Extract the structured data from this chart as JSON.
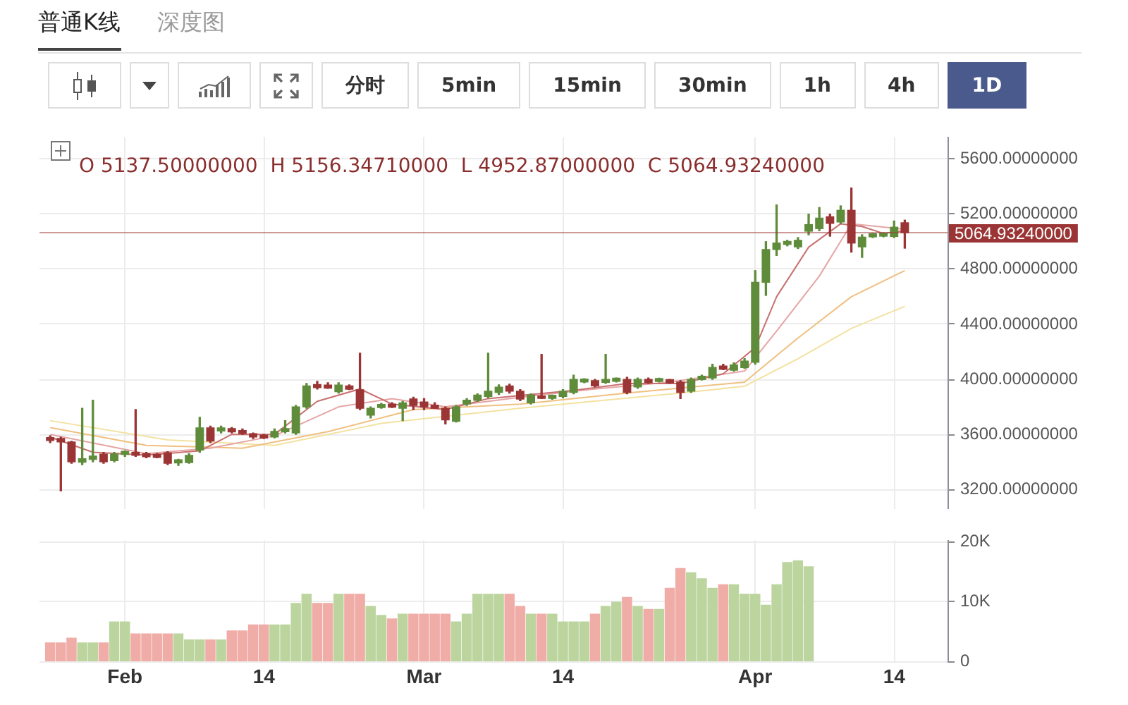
{
  "chart_data": [
    {
      "type": "candlestick",
      "annotations": [
        "O 5137.50000000  H 5156.34710000  L 4952.87000000  C 5064.93240000",
        "普通K线",
        "深度图",
        "分时",
        "5min",
        "15min",
        "30min",
        "1h",
        "4h",
        "1D"
      ],
      "x": [
        "--01-25",
        "--01-26",
        "--01-27",
        "--01-28",
        "--01-29",
        "--01-30",
        "--01-31",
        "--02-01",
        "--02-02",
        "--02-03",
        "--02-04",
        "--02-05",
        "--02-06",
        "--02-07",
        "--02-08",
        "--02-09",
        "--02-10",
        "--02-11",
        "--02-12",
        "--02-13",
        "--02-14",
        "--02-15",
        "--02-16",
        "--02-17",
        "--02-18",
        "--02-19",
        "--02-20",
        "--02-21",
        "--02-22",
        "--02-23",
        "--02-24",
        "--02-25",
        "--02-26",
        "--02-27",
        "--02-28",
        "--03-01",
        "--03-02",
        "--03-03",
        "--03-04",
        "--03-05",
        "--03-06",
        "--03-07",
        "--03-08",
        "--03-09",
        "--03-10",
        "--03-11",
        "--03-12",
        "--03-13",
        "--03-14",
        "--03-15",
        "--03-16",
        "--03-17",
        "--03-18",
        "--03-19",
        "--03-20",
        "--03-21",
        "--03-22",
        "--03-23",
        "--03-24",
        "--03-25",
        "--03-26",
        "--03-27",
        "--03-28",
        "--03-29",
        "--03-30",
        "--03-31",
        "--04-01",
        "--04-02",
        "--04-03",
        "--04-04",
        "--04-05",
        "--04-06",
        "--04-07",
        "--04-08",
        "--04-09",
        "--04-10",
        "--04-11",
        "--04-12",
        "--04-13",
        "--04-14",
        "--04-15"
      ],
      "ohlc": [
        [
          3577,
          3590,
          3540,
          3555
        ],
        [
          3570,
          3580,
          3190,
          3545
        ],
        [
          3545,
          3550,
          3390,
          3400
        ],
        [
          3398,
          3790,
          3380,
          3423
        ],
        [
          3418,
          3848,
          3400,
          3443
        ],
        [
          3457,
          3470,
          3390,
          3400
        ],
        [
          3410,
          3470,
          3400,
          3457
        ],
        [
          3455,
          3480,
          3440,
          3477
        ],
        [
          3470,
          3781,
          3440,
          3448
        ],
        [
          3460,
          3470,
          3430,
          3438
        ],
        [
          3455,
          3460,
          3430,
          3433
        ],
        [
          3467,
          3475,
          3380,
          3390
        ],
        [
          3393,
          3420,
          3375,
          3415
        ],
        [
          3395,
          3460,
          3390,
          3448
        ],
        [
          3486,
          3724,
          3470,
          3648
        ],
        [
          3648,
          3660,
          3540,
          3552
        ],
        [
          3625,
          3660,
          3610,
          3647
        ],
        [
          3642,
          3650,
          3610,
          3618
        ],
        [
          3628,
          3640,
          3600,
          3606
        ],
        [
          3605,
          3610,
          3570,
          3581
        ],
        [
          3595,
          3600,
          3570,
          3573
        ],
        [
          3581,
          3640,
          3575,
          3622
        ],
        [
          3620,
          3700,
          3610,
          3642
        ],
        [
          3610,
          3810,
          3600,
          3800
        ],
        [
          3800,
          3970,
          3790,
          3952
        ],
        [
          3962,
          3985,
          3930,
          3940
        ],
        [
          3958,
          3975,
          3935,
          3936
        ],
        [
          3910,
          3975,
          3900,
          3958
        ],
        [
          3952,
          3960,
          3925,
          3928
        ],
        [
          3924,
          4190,
          3780,
          3790
        ],
        [
          3740,
          3800,
          3720,
          3790
        ],
        [
          3795,
          3825,
          3790,
          3818
        ],
        [
          3820,
          3830,
          3795,
          3797
        ],
        [
          3790,
          3840,
          3700,
          3829
        ],
        [
          3857,
          3870,
          3780,
          3810
        ],
        [
          3835,
          3860,
          3780,
          3800
        ],
        [
          3812,
          3830,
          3790,
          3790
        ],
        [
          3790,
          3800,
          3676,
          3705
        ],
        [
          3695,
          3810,
          3690,
          3800
        ],
        [
          3820,
          3860,
          3810,
          3848
        ],
        [
          3848,
          3895,
          3840,
          3886
        ],
        [
          3876,
          4190,
          3865,
          3914
        ],
        [
          3905,
          3960,
          3890,
          3943
        ],
        [
          3952,
          3965,
          3900,
          3914
        ],
        [
          3914,
          3925,
          3845,
          3857
        ],
        [
          3829,
          3895,
          3820,
          3886
        ],
        [
          3879,
          4181,
          3860,
          3862
        ],
        [
          3862,
          3885,
          3855,
          3884
        ],
        [
          3876,
          3925,
          3865,
          3914
        ],
        [
          3905,
          4030,
          3895,
          4000
        ],
        [
          3980,
          4005,
          3975,
          4002
        ],
        [
          3990,
          4000,
          3945,
          3952
        ],
        [
          3978,
          4181,
          3970,
          4000
        ],
        [
          3986,
          4010,
          3980,
          4008
        ],
        [
          4000,
          4015,
          3895,
          3905
        ],
        [
          3945,
          4010,
          3935,
          4000
        ],
        [
          4000,
          4010,
          3970,
          3977
        ],
        [
          3984,
          4008,
          3980,
          4006
        ],
        [
          3998,
          4000,
          3970,
          3974
        ],
        [
          3980,
          3990,
          3860,
          3905
        ],
        [
          3914,
          4010,
          3905,
          4000
        ],
        [
          3998,
          4030,
          3995,
          4022
        ],
        [
          4010,
          4110,
          4000,
          4086
        ],
        [
          4097,
          4110,
          4070,
          4073
        ],
        [
          4067,
          4120,
          4060,
          4105
        ],
        [
          4086,
          4150,
          4080,
          4133
        ],
        [
          4124,
          4790,
          4110,
          4705
        ],
        [
          4705,
          5000,
          4610,
          4943
        ],
        [
          4943,
          5267,
          4900,
          4990
        ],
        [
          4980,
          5010,
          4970,
          5002
        ],
        [
          4962,
          5030,
          4950,
          5010
        ],
        [
          5076,
          5200,
          5050,
          5124
        ],
        [
          5095,
          5248,
          5080,
          5171
        ],
        [
          5181,
          5200,
          5040,
          5133
        ],
        [
          5143,
          5260,
          5130,
          5228
        ],
        [
          5228,
          5390,
          4924,
          4990
        ],
        [
          4962,
          5050,
          4886,
          5033
        ],
        [
          5035,
          5060,
          5030,
          5057
        ],
        [
          5040,
          5065,
          5035,
          5062
        ],
        [
          5038,
          5150,
          5030,
          5105
        ],
        [
          5137.5,
          5156.3471,
          4952.87,
          5064.9324
        ]
      ],
      "colors": [
        "#9b3535",
        "#9b3535",
        "#9b3535",
        "#5e8c3a",
        "#5e8c3a",
        "#9b3535",
        "#5e8c3a",
        "#5e8c3a",
        "#9b3535",
        "#9b3535",
        "#9b3535",
        "#9b3535",
        "#5e8c3a",
        "#5e8c3a",
        "#5e8c3a",
        "#9b3535",
        "#5e8c3a",
        "#9b3535",
        "#9b3535",
        "#9b3535",
        "#9b3535",
        "#5e8c3a",
        "#5e8c3a",
        "#5e8c3a",
        "#5e8c3a",
        "#9b3535",
        "#9b3535",
        "#5e8c3a",
        "#9b3535",
        "#9b3535",
        "#5e8c3a",
        "#5e8c3a",
        "#9b3535",
        "#5e8c3a",
        "#9b3535",
        "#9b3535",
        "#9b3535",
        "#9b3535",
        "#5e8c3a",
        "#5e8c3a",
        "#5e8c3a",
        "#5e8c3a",
        "#5e8c3a",
        "#9b3535",
        "#9b3535",
        "#5e8c3a",
        "#9b3535",
        "#5e8c3a",
        "#5e8c3a",
        "#5e8c3a",
        "#5e8c3a",
        "#9b3535",
        "#5e8c3a",
        "#5e8c3a",
        "#9b3535",
        "#5e8c3a",
        "#9b3535",
        "#5e8c3a",
        "#9b3535",
        "#9b3535",
        "#5e8c3a",
        "#5e8c3a",
        "#5e8c3a",
        "#9b3535",
        "#5e8c3a",
        "#5e8c3a",
        "#5e8c3a",
        "#5e8c3a",
        "#5e8c3a",
        "#5e8c3a",
        "#5e8c3a",
        "#5e8c3a",
        "#5e8c3a",
        "#9b3535",
        "#5e8c3a",
        "#9b3535",
        "#5e8c3a",
        "#5e8c3a",
        "#5e8c3a",
        "#5e8c3a",
        "#9b3535"
      ],
      "series": [
        {
          "type": "line",
          "color": "#c97070",
          "x": [
            "--01-25",
            "--01-29",
            "--02-03",
            "--02-08",
            "--02-11",
            "--02-15",
            "--02-19",
            "--02-23",
            "--02-26",
            "--03-03",
            "--03-07",
            "--03-11",
            "--03-15",
            "--03-20",
            "--03-25",
            "--03-29",
            "--04-01",
            "--04-03",
            "--04-06",
            "--04-09",
            "--04-11",
            "--04-13",
            "--04-15"
          ],
          "values": [
            3580,
            3470,
            3450,
            3480,
            3600,
            3600,
            3840,
            3930,
            3820,
            3780,
            3860,
            3890,
            3920,
            3970,
            3970,
            4040,
            4230,
            4600,
            4960,
            5130,
            5110,
            5060,
            5080
          ]
        },
        {
          "type": "line",
          "color": "#e6a5a5",
          "x": [
            "--01-25",
            "--02-03",
            "--02-09",
            "--02-15",
            "--02-21",
            "--02-26",
            "--03-03",
            "--03-10",
            "--03-17",
            "--03-24",
            "--03-31",
            "--04-03",
            "--04-07",
            "--04-10",
            "--04-15"
          ],
          "values": [
            3600,
            3460,
            3500,
            3590,
            3800,
            3860,
            3800,
            3870,
            3930,
            3980,
            4060,
            4350,
            4750,
            5130,
            5090
          ]
        },
        {
          "type": "line",
          "color": "#f0c080",
          "x": [
            "--01-25",
            "--02-03",
            "--02-12",
            "--02-20",
            "--02-28",
            "--03-10",
            "--03-20",
            "--03-31",
            "--04-05",
            "--04-10",
            "--04-15"
          ],
          "values": [
            3650,
            3520,
            3500,
            3620,
            3780,
            3820,
            3900,
            3980,
            4300,
            4600,
            4790
          ]
        },
        {
          "type": "line",
          "color": "#f3e2a0",
          "x": [
            "--01-25",
            "--02-05",
            "--02-15",
            "--02-25",
            "--03-10",
            "--03-25",
            "--03-31",
            "--04-05",
            "--04-10",
            "--04-15"
          ],
          "values": [
            3700,
            3560,
            3520,
            3680,
            3790,
            3900,
            3950,
            4150,
            4370,
            4530
          ]
        }
      ],
      "xlim": [
        "--01-24",
        "--04-19"
      ],
      "ylim": [
        3060,
        5760
      ],
      "yticks": [
        {
          "value": 3200,
          "label": "3200.00000000"
        },
        {
          "value": 3600,
          "label": "3600.00000000"
        },
        {
          "value": 4000,
          "label": "4000.00000000"
        },
        {
          "value": 4400,
          "label": "4400.00000000"
        },
        {
          "value": 4800,
          "label": "4800.00000000"
        },
        {
          "value": 5200,
          "label": "5200.00000000"
        },
        {
          "value": 5600,
          "label": "5600.00000000"
        }
      ],
      "xticks": [
        {
          "value": "--02-01",
          "label": null
        },
        {
          "value": "--02-14",
          "label": null
        },
        {
          "value": "--03-01",
          "label": null
        },
        {
          "value": "--03-14",
          "label": null
        },
        {
          "value": "--04-01",
          "label": null
        },
        {
          "value": "--04-14",
          "label": null
        }
      ],
      "ref_lines": [
        {
          "axis": "y",
          "value": 5064.9324,
          "label": "5064.93240000",
          "color": "#9b3535"
        }
      ],
      "tick_labels": "y",
      "grid": true,
      "legend": false,
      "marker": "none"
    },
    {
      "type": "bar",
      "x": [
        "--01-25",
        "--01-26",
        "--01-27",
        "--01-28",
        "--01-29",
        "--01-30",
        "--01-31",
        "--02-01",
        "--02-02",
        "--02-03",
        "--02-04",
        "--02-05",
        "--02-06",
        "--02-07",
        "--02-08",
        "--02-09",
        "--02-10",
        "--02-11",
        "--02-12",
        "--02-13",
        "--02-14",
        "--02-15",
        "--02-16",
        "--02-17",
        "--02-18",
        "--02-19",
        "--02-20",
        "--02-21",
        "--02-22",
        "--02-23",
        "--02-24",
        "--02-25",
        "--02-26",
        "--02-27",
        "--02-28",
        "--03-01",
        "--03-02",
        "--03-03",
        "--03-04",
        "--03-05",
        "--03-06",
        "--03-07",
        "--03-08",
        "--03-09",
        "--03-10",
        "--03-11",
        "--03-12",
        "--03-13",
        "--03-14",
        "--03-15",
        "--03-16",
        "--03-17",
        "--03-18",
        "--03-19",
        "--03-20",
        "--03-21",
        "--03-22",
        "--03-23",
        "--03-24",
        "--03-25",
        "--03-26",
        "--03-27",
        "--03-28",
        "--03-29",
        "--03-30",
        "--03-31",
        "--04-01",
        "--04-02",
        "--04-03",
        "--04-04",
        "--04-05",
        "--04-06"
      ],
      "values": [
        3100,
        3100,
        3900,
        3100,
        3100,
        3100,
        6600,
        6600,
        4600,
        4600,
        4600,
        4600,
        4600,
        3600,
        3600,
        3600,
        3600,
        5100,
        5100,
        6100,
        6100,
        6100,
        6100,
        9700,
        11200,
        9700,
        9700,
        11200,
        11200,
        11200,
        9200,
        7700,
        7100,
        7900,
        7900,
        7900,
        7900,
        7900,
        6600,
        7900,
        11200,
        11200,
        11200,
        11200,
        9200,
        7900,
        7900,
        7900,
        6600,
        6600,
        6600,
        7900,
        9200,
        9900,
        10700,
        9200,
        8700,
        8700,
        12200,
        15500,
        14800,
        13800,
        12200,
        12800,
        12800,
        11200,
        11200,
        9400,
        12800,
        16500,
        16800,
        15800
      ],
      "colors": [
        "#f0aca6",
        "#f0aca6",
        "#f0aca6",
        "#bcd59f",
        "#bcd59f",
        "#f0aca6",
        "#bcd59f",
        "#bcd59f",
        "#f0aca6",
        "#f0aca6",
        "#f0aca6",
        "#f0aca6",
        "#bcd59f",
        "#bcd59f",
        "#bcd59f",
        "#f0aca6",
        "#bcd59f",
        "#f0aca6",
        "#f0aca6",
        "#f0aca6",
        "#f0aca6",
        "#bcd59f",
        "#bcd59f",
        "#bcd59f",
        "#bcd59f",
        "#f0aca6",
        "#f0aca6",
        "#bcd59f",
        "#f0aca6",
        "#f0aca6",
        "#bcd59f",
        "#bcd59f",
        "#f0aca6",
        "#bcd59f",
        "#f0aca6",
        "#f0aca6",
        "#f0aca6",
        "#f0aca6",
        "#bcd59f",
        "#bcd59f",
        "#bcd59f",
        "#bcd59f",
        "#bcd59f",
        "#f0aca6",
        "#f0aca6",
        "#bcd59f",
        "#f0aca6",
        "#bcd59f",
        "#bcd59f",
        "#bcd59f",
        "#bcd59f",
        "#f0aca6",
        "#bcd59f",
        "#bcd59f",
        "#f0aca6",
        "#bcd59f",
        "#f0aca6",
        "#bcd59f",
        "#f0aca6",
        "#f0aca6",
        "#bcd59f",
        "#bcd59f",
        "#bcd59f",
        "#f0aca6",
        "#bcd59f",
        "#bcd59f",
        "#bcd59f",
        "#bcd59f",
        "#bcd59f",
        "#bcd59f",
        "#bcd59f",
        "#bcd59f"
      ],
      "xlim": [
        "--01-24",
        "--04-19"
      ],
      "ylim": [
        0,
        20200
      ],
      "yticks": [
        {
          "value": 0,
          "label": "0"
        },
        {
          "value": 10000,
          "label": "10K"
        },
        {
          "value": 20000,
          "label": "20K"
        }
      ],
      "xticks": [
        {
          "value": "--02-01",
          "label": "Feb"
        },
        {
          "value": "--02-14",
          "label": "14"
        },
        {
          "value": "--03-01",
          "label": "Mar"
        },
        {
          "value": "--03-14",
          "label": "14"
        },
        {
          "value": "--04-01",
          "label": "Apr"
        },
        {
          "value": "--04-14",
          "label": "14"
        }
      ],
      "grid": true,
      "legend": false
    }
  ]
}
